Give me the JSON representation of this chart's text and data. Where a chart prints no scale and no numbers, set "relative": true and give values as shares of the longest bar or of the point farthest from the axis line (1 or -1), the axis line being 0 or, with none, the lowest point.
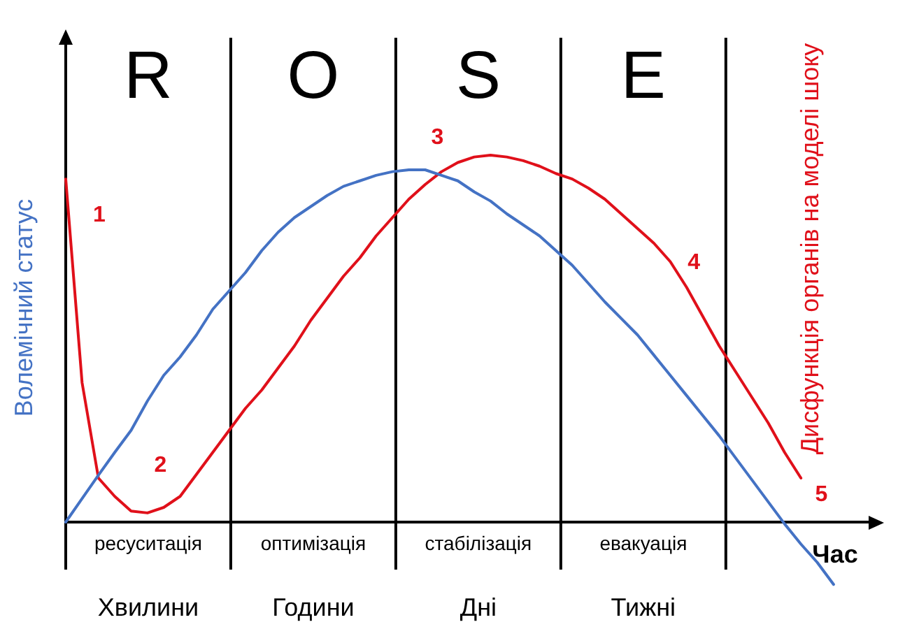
{
  "chart_data": {
    "type": "line",
    "relative": true,
    "marker": "none",
    "line_style": "solid",
    "xlabel": "Час",
    "ylabel": "Волемічний статус",
    "y2label": "Дисфункція органів на моделі шоку",
    "categories": [
      null,
      null,
      null,
      null,
      null,
      null,
      null,
      null,
      null,
      null,
      null,
      null,
      null,
      null,
      null,
      null,
      null,
      null,
      null,
      null,
      null,
      null,
      null,
      null,
      null,
      null,
      null,
      null,
      null,
      null,
      null,
      null,
      null,
      null,
      null,
      null,
      null,
      null,
      null,
      null,
      null,
      null,
      null,
      null,
      null,
      null,
      null,
      null,
      null,
      null,
      null
    ],
    "series": [
      {
        "color": "#4472c4",
        "values": [
          0,
          0.064,
          0.128,
          0.19,
          0.25,
          0.33,
          0.4,
          0.45,
          0.51,
          0.58,
          0.63,
          0.68,
          0.74,
          0.79,
          0.83,
          0.86,
          0.89,
          0.915,
          0.93,
          0.945,
          0.955,
          0.96,
          0.96,
          0.945,
          0.93,
          0.9,
          0.875,
          0.84,
          0.81,
          0.78,
          0.74,
          0.7,
          0.65,
          0.6,
          0.555,
          0.51,
          0.455,
          0.4,
          0.345,
          0.29,
          0.235,
          0.175,
          0.115,
          0.055,
          -0.005,
          -0.06,
          -0.11,
          -0.17,
          null,
          null,
          null
        ]
      },
      {
        "color": "#e0101a",
        "values": [
          0.935,
          0.38,
          0.12,
          0.07,
          0.03,
          0.025,
          0.04,
          0.07,
          0.13,
          0.19,
          0.25,
          0.31,
          0.36,
          0.42,
          0.48,
          0.55,
          0.61,
          0.67,
          0.72,
          0.78,
          0.83,
          0.88,
          0.92,
          0.955,
          0.98,
          0.995,
          1,
          0.995,
          0.985,
          0.97,
          0.95,
          0.935,
          0.91,
          0.88,
          0.84,
          0.8,
          0.76,
          0.71,
          0.64,
          0.56,
          0.48,
          0.41,
          0.34,
          0.27,
          0.19,
          0.12,
          null,
          null,
          null,
          null,
          null
        ]
      }
    ],
    "annotations": [
      "R",
      "O",
      "S",
      "E",
      "ресуситація",
      "оптимізація",
      "стабілізація",
      "евакуація",
      "Хвилини",
      "Години",
      "Дні",
      "Тижні",
      "1",
      "2",
      "3",
      "4",
      "5"
    ]
  }
}
